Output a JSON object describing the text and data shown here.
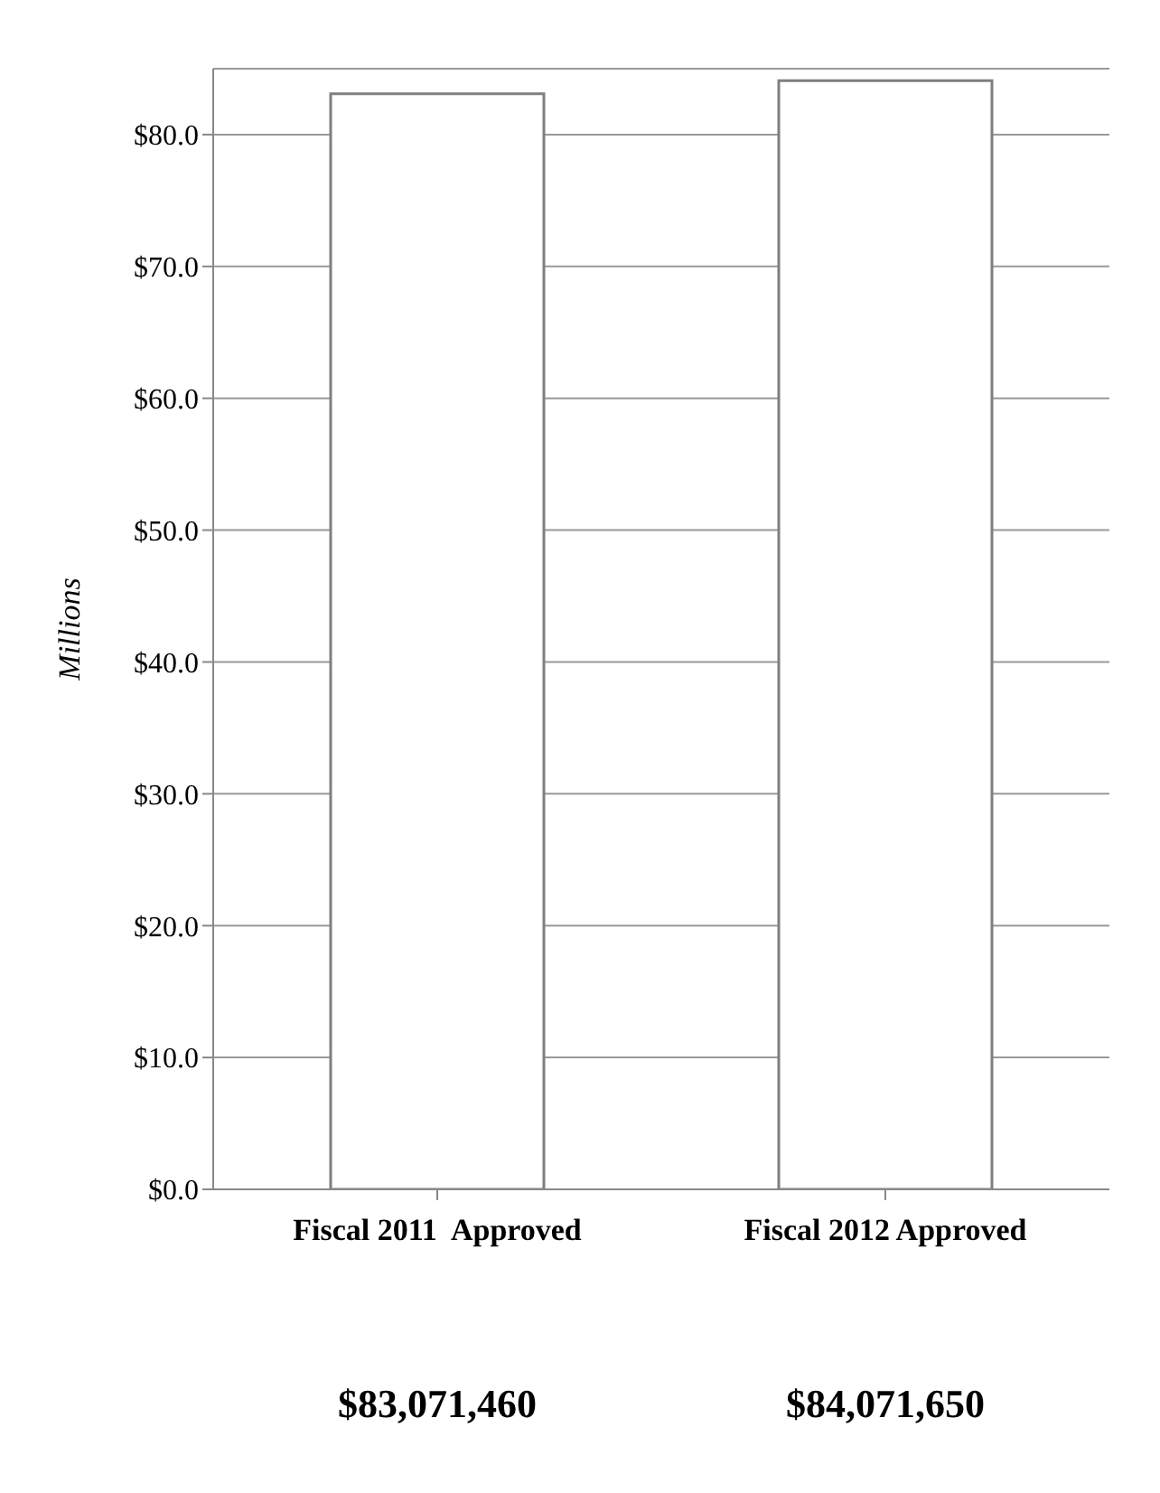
{
  "chart_data": {
    "type": "bar",
    "ylabel": "Millions",
    "categories": [
      "Fiscal 2011  Approved",
      "Fiscal 2012 Approved"
    ],
    "values": [
      83.1,
      84.1
    ],
    "annotations": [
      "$83,071,460",
      "$84,071,650"
    ],
    "color": "#ffffff",
    "ylim": [
      0,
      85
    ],
    "yticks": [
      {
        "value": 0,
        "label": "$0.0"
      },
      {
        "value": 10,
        "label": "$10.0"
      },
      {
        "value": 20,
        "label": "$20.0"
      },
      {
        "value": 30,
        "label": "$30.0"
      },
      {
        "value": 40,
        "label": "$40.0"
      },
      {
        "value": 50,
        "label": "$50.0"
      },
      {
        "value": 60,
        "label": "$60.0"
      },
      {
        "value": 70,
        "label": "$70.0"
      },
      {
        "value": 80,
        "label": "$80.0"
      }
    ],
    "grid": "y"
  }
}
